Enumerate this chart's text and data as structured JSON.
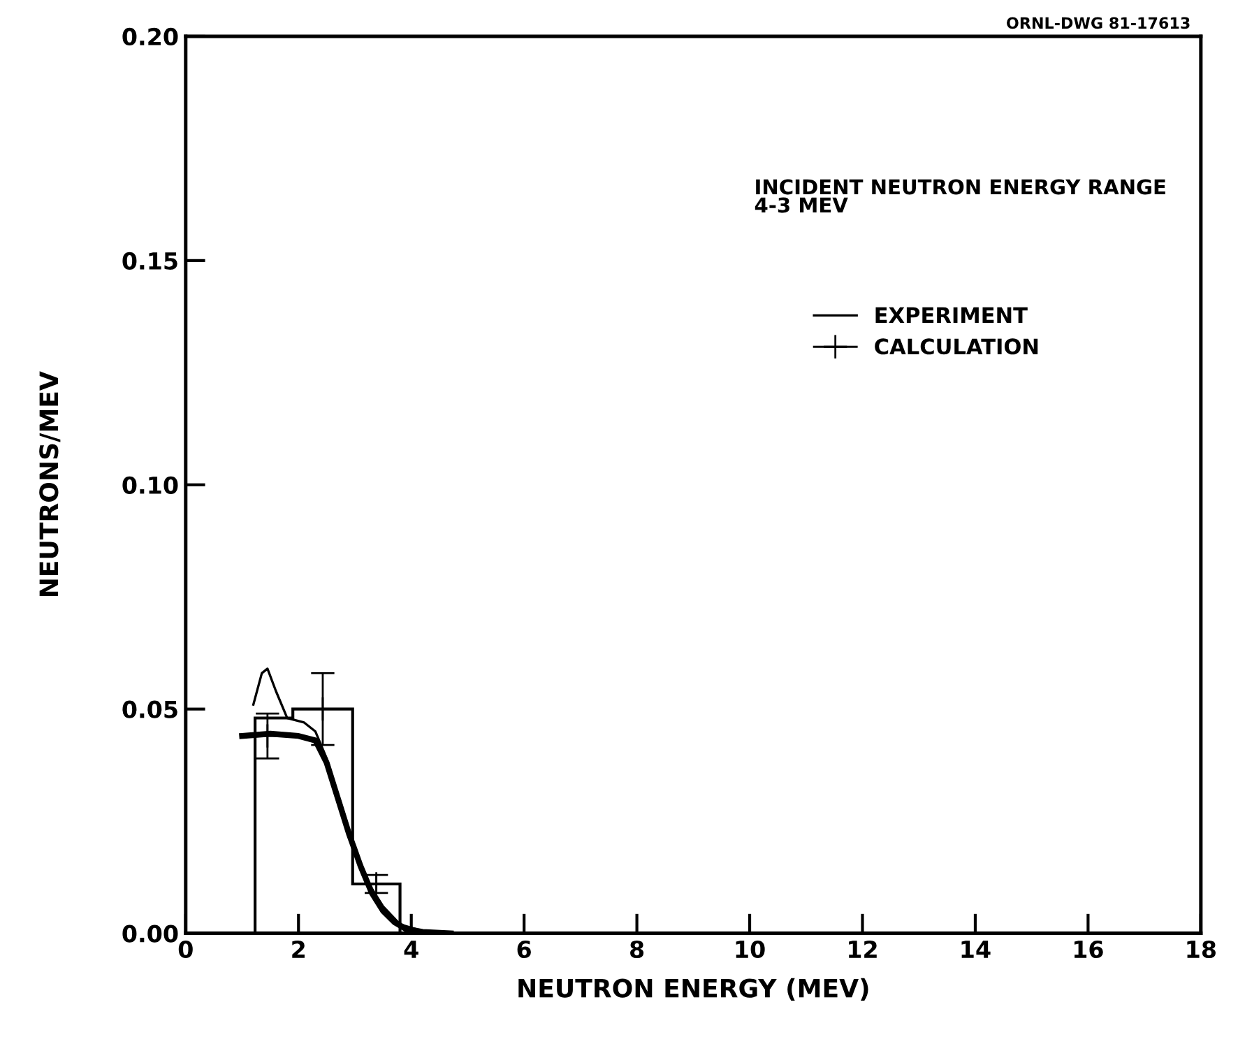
{
  "chart_data": {
    "type": "line",
    "xlabel": "NEUTRON ENERGY (MEV)",
    "ylabel": "NEUTRONS/MEV",
    "annotations": [
      "ORNL-DWG 81-17613",
      "INCIDENT NEUTRON ENERGY RANGE\n4-3 MEV"
    ],
    "series": [
      {
        "name": "EXPERIMENT",
        "color": "#000000",
        "x": [
          1.2,
          1.35,
          1.45,
          1.6,
          1.8,
          2.1,
          2.3,
          2.5,
          2.7,
          2.9,
          3.1,
          3.3,
          3.5,
          3.8,
          4.2
        ],
        "values": [
          0.051,
          0.058,
          0.059,
          0.054,
          0.048,
          0.047,
          0.045,
          0.039,
          0.031,
          0.023,
          0.015,
          0.01,
          0.006,
          0.002,
          0.0005
        ]
      },
      {
        "color": "#000000",
        "x": [
          1.0,
          1.5,
          2.0,
          2.3,
          2.5,
          2.7,
          2.9,
          3.1,
          3.3,
          3.5,
          3.7,
          3.9,
          4.2,
          4.7
        ],
        "values": [
          0.044,
          0.0445,
          0.044,
          0.043,
          0.038,
          0.03,
          0.022,
          0.015,
          0.009,
          0.005,
          0.0025,
          0.001,
          0.0003,
          0.0
        ]
      },
      {
        "name": "CALCULATION",
        "type": "histogram",
        "color": "#000000",
        "bins": [
          1.23,
          1.9,
          2.96,
          3.8
        ],
        "values": [
          0.048,
          0.05,
          0.011
        ]
      },
      {
        "type": "scatter",
        "marker": "cross",
        "color": "#000000",
        "x": [
          1.45,
          2.43,
          3.38
        ],
        "values": [
          0.044,
          0.05,
          0.011
        ],
        "errors": [
          0.005,
          0.008,
          0.002
        ]
      }
    ],
    "xlim": [
      0,
      18
    ],
    "xticks": [
      0,
      2,
      4,
      6,
      8,
      10,
      12,
      14,
      16,
      18
    ],
    "ylim": [
      0,
      0.2
    ],
    "yticks": [
      {
        "value": 0,
        "label": "0.00"
      },
      {
        "value": 0.05,
        "label": "0.05"
      },
      {
        "value": 0.1,
        "label": "0.10"
      },
      {
        "value": 0.15,
        "label": "0.15"
      },
      {
        "value": 0.2,
        "label": "0.20"
      }
    ],
    "grid": false,
    "legend": "top right"
  }
}
